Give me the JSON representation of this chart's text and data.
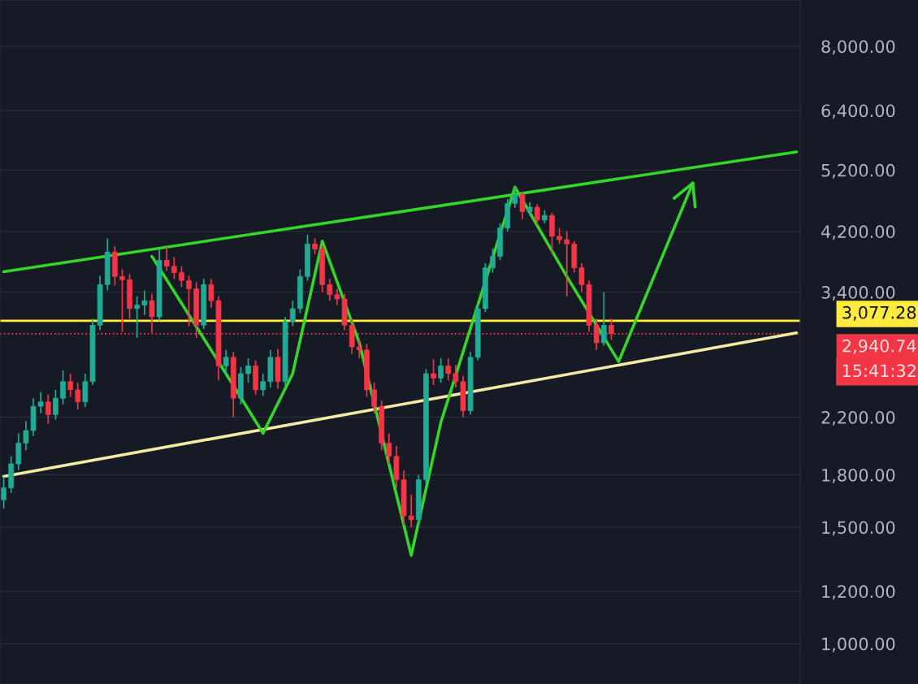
{
  "chart_data": {
    "type": "candlestick",
    "categories": [
      null,
      null,
      null,
      null,
      null,
      null,
      null,
      null,
      null,
      null,
      null,
      null,
      null,
      null,
      null,
      null,
      null,
      null,
      null,
      null,
      null,
      null,
      null,
      null,
      null,
      null,
      null,
      null,
      null,
      null,
      null,
      null,
      null,
      null,
      null,
      null,
      null,
      null,
      null,
      null,
      null,
      null,
      null,
      null,
      null,
      null,
      null,
      null,
      null,
      null,
      null,
      null,
      null,
      null,
      null,
      null,
      null,
      null,
      null,
      null,
      null,
      null,
      null,
      null,
      null,
      null,
      null,
      null,
      null,
      null,
      null,
      null,
      null,
      null,
      null,
      null,
      null,
      null,
      null,
      null,
      null,
      null,
      null,
      null,
      null,
      null,
      null,
      null,
      null,
      null,
      null,
      null,
      null,
      null,
      null,
      null,
      null,
      null,
      null,
      null,
      null,
      null,
      null,
      null,
      null,
      null,
      null,
      null
    ],
    "ohlc": [
      [
        1650,
        1790,
        1600,
        1720
      ],
      [
        1720,
        1920,
        1690,
        1870
      ],
      [
        1870,
        2080,
        1830,
        2010
      ],
      [
        2010,
        2170,
        1960,
        2100
      ],
      [
        2100,
        2350,
        2060,
        2285
      ],
      [
        2285,
        2400,
        2230,
        2320
      ],
      [
        2320,
        2380,
        2150,
        2220
      ],
      [
        2220,
        2420,
        2180,
        2350
      ],
      [
        2350,
        2590,
        2300,
        2490
      ],
      [
        2490,
        2560,
        2360,
        2420
      ],
      [
        2420,
        2480,
        2260,
        2320
      ],
      [
        2320,
        2560,
        2280,
        2490
      ],
      [
        2490,
        3100,
        2460,
        3030
      ],
      [
        3030,
        3600,
        2980,
        3490
      ],
      [
        3490,
        4100,
        3420,
        3910
      ],
      [
        3910,
        3990,
        3480,
        3590
      ],
      [
        3590,
        3680,
        2960,
        3550
      ],
      [
        3550,
        3620,
        3100,
        3210
      ],
      [
        3210,
        3350,
        2900,
        3250
      ],
      [
        3250,
        3420,
        3140,
        3300
      ],
      [
        3300,
        3380,
        2950,
        3120
      ],
      [
        3120,
        3950,
        3080,
        3800
      ],
      [
        3800,
        3980,
        3660,
        3720
      ],
      [
        3720,
        3840,
        3560,
        3640
      ],
      [
        3640,
        3720,
        3460,
        3540
      ],
      [
        3540,
        3600,
        3020,
        3440
      ],
      [
        3440,
        3520,
        2900,
        3030
      ],
      [
        3030,
        3560,
        2990,
        3490
      ],
      [
        3490,
        3560,
        3220,
        3300
      ],
      [
        3300,
        3350,
        2500,
        2630
      ],
      [
        2630,
        2780,
        2560,
        2710
      ],
      [
        2710,
        2760,
        2200,
        2350
      ],
      [
        2350,
        2620,
        2300,
        2560
      ],
      [
        2560,
        2700,
        2480,
        2630
      ],
      [
        2630,
        2680,
        2380,
        2420
      ],
      [
        2420,
        2560,
        2370,
        2490
      ],
      [
        2490,
        2780,
        2440,
        2710
      ],
      [
        2710,
        2790,
        2430,
        2490
      ],
      [
        2490,
        3120,
        2440,
        3070
      ],
      [
        3070,
        3300,
        3020,
        3210
      ],
      [
        3210,
        3680,
        3160,
        3590
      ],
      [
        3590,
        4150,
        3540,
        4020
      ],
      [
        4020,
        4100,
        3880,
        3950
      ],
      [
        3950,
        4000,
        3400,
        3490
      ],
      [
        3490,
        3560,
        3300,
        3370
      ],
      [
        3370,
        3440,
        3250,
        3320
      ],
      [
        3320,
        3380,
        2980,
        3030
      ],
      [
        3030,
        3100,
        2740,
        2810
      ],
      [
        2810,
        2880,
        2700,
        2780
      ],
      [
        2780,
        2840,
        2360,
        2420
      ],
      [
        2420,
        2480,
        2230,
        2285
      ],
      [
        2285,
        2330,
        1960,
        2010
      ],
      [
        2010,
        2080,
        1870,
        1920
      ],
      [
        1920,
        1990,
        1720,
        1770
      ],
      [
        1770,
        1830,
        1510,
        1560
      ],
      [
        1560,
        1680,
        1500,
        1540
      ],
      [
        1540,
        1800,
        1500,
        1770
      ],
      [
        1770,
        2600,
        1740,
        2560
      ],
      [
        2560,
        2690,
        2460,
        2520
      ],
      [
        2520,
        2700,
        2480,
        2630
      ],
      [
        2630,
        2700,
        2500,
        2560
      ],
      [
        2560,
        2640,
        2440,
        2490
      ],
      [
        2490,
        2540,
        2200,
        2250
      ],
      [
        2250,
        2760,
        2220,
        2710
      ],
      [
        2710,
        3260,
        2680,
        3210
      ],
      [
        3210,
        3760,
        3170,
        3700
      ],
      [
        3700,
        3960,
        3640,
        3850
      ],
      [
        3850,
        4320,
        3800,
        4250
      ],
      [
        4250,
        4700,
        4200,
        4630
      ],
      [
        4630,
        4900,
        4560,
        4770
      ],
      [
        4770,
        4820,
        4380,
        4500
      ],
      [
        4500,
        4650,
        4440,
        4570
      ],
      [
        4570,
        4620,
        4300,
        4370
      ],
      [
        4370,
        4520,
        4320,
        4440
      ],
      [
        4440,
        4480,
        3880,
        4130
      ],
      [
        4130,
        4250,
        4020,
        4080
      ],
      [
        4080,
        4200,
        3350,
        4020
      ],
      [
        4020,
        4060,
        3640,
        3700
      ],
      [
        3700,
        3760,
        3400,
        3490
      ],
      [
        3490,
        3540,
        2960,
        3030
      ],
      [
        3030,
        3100,
        2780,
        2850
      ],
      [
        2850,
        3400,
        2820,
        3030
      ],
      [
        3030,
        3100,
        2880,
        2940.74
      ],
      null,
      null,
      null,
      null,
      null,
      null,
      null,
      null,
      null,
      null,
      null,
      null,
      null,
      null,
      null,
      null,
      null,
      null,
      null,
      null,
      null,
      null,
      null,
      null,
      null
    ],
    "colors": [
      "#22ab94",
      "#22ab94",
      "#22ab94",
      "#22ab94",
      "#22ab94",
      "#22ab94",
      "#f23645",
      "#22ab94",
      "#22ab94",
      "#f23645",
      "#f23645",
      "#22ab94",
      "#22ab94",
      "#22ab94",
      "#22ab94",
      "#f23645",
      "#f23645",
      "#f23645",
      "#22ab94",
      "#22ab94",
      "#f23645",
      "#22ab94",
      "#f23645",
      "#f23645",
      "#f23645",
      "#f23645",
      "#f23645",
      "#22ab94",
      "#f23645",
      "#f23645",
      "#22ab94",
      "#f23645",
      "#22ab94",
      "#22ab94",
      "#f23645",
      "#22ab94",
      "#22ab94",
      "#f23645",
      "#22ab94",
      "#22ab94",
      "#22ab94",
      "#22ab94",
      "#f23645",
      "#f23645",
      "#f23645",
      "#f23645",
      "#f23645",
      "#f23645",
      "#f23645",
      "#f23645",
      "#f23645",
      "#f23645",
      "#f23645",
      "#f23645",
      "#f23645",
      "#f23645",
      "#22ab94",
      "#22ab94",
      "#f23645",
      "#22ab94",
      "#f23645",
      "#f23645",
      "#f23645",
      "#22ab94",
      "#22ab94",
      "#22ab94",
      "#22ab94",
      "#22ab94",
      "#22ab94",
      "#22ab94",
      "#f23645",
      "#22ab94",
      "#f23645",
      "#22ab94",
      "#f23645",
      "#f23645",
      "#f23645",
      "#f23645",
      "#f23645",
      "#f23645",
      "#f23645",
      "#22ab94",
      "#f23645",
      null,
      null,
      null,
      null,
      null,
      null,
      null,
      null,
      null,
      null,
      null,
      null,
      null,
      null,
      null,
      null,
      null,
      null,
      null,
      null,
      null,
      null,
      null,
      null,
      null
    ],
    "series": [
      {
        "type": "line",
        "color": "#35d62a",
        "values": [
          3650,
          null,
          null,
          null,
          null,
          null,
          null,
          null,
          null,
          null,
          null,
          null,
          null,
          null,
          null,
          null,
          null,
          null,
          null,
          null,
          null,
          null,
          null,
          null,
          null,
          null,
          null,
          null,
          null,
          null,
          null,
          null,
          null,
          null,
          null,
          null,
          null,
          null,
          null,
          null,
          null,
          null,
          null,
          null,
          null,
          null,
          null,
          null,
          null,
          null,
          null,
          null,
          null,
          null,
          null,
          null,
          null,
          null,
          null,
          null,
          null,
          null,
          null,
          null,
          null,
          null,
          null,
          null,
          null,
          null,
          null,
          null,
          null,
          null,
          null,
          null,
          null,
          null,
          null,
          null,
          null,
          null,
          null,
          null,
          null,
          null,
          null,
          null,
          null,
          null,
          null,
          null,
          null,
          null,
          null,
          null,
          null,
          null,
          null,
          null,
          null,
          null,
          null,
          null,
          null,
          null,
          null,
          5540
        ]
      },
      {
        "type": "line",
        "color": "#f5e9a6",
        "values": [
          1790,
          null,
          null,
          null,
          null,
          null,
          null,
          null,
          null,
          null,
          null,
          null,
          null,
          null,
          null,
          null,
          null,
          null,
          null,
          null,
          null,
          null,
          null,
          null,
          null,
          null,
          null,
          null,
          null,
          null,
          null,
          null,
          null,
          null,
          null,
          null,
          null,
          null,
          null,
          null,
          null,
          null,
          null,
          null,
          null,
          null,
          null,
          null,
          null,
          null,
          null,
          null,
          null,
          null,
          null,
          null,
          null,
          null,
          null,
          null,
          null,
          null,
          null,
          null,
          null,
          null,
          null,
          null,
          null,
          null,
          null,
          null,
          null,
          null,
          null,
          null,
          null,
          null,
          null,
          null,
          null,
          null,
          null,
          null,
          null,
          null,
          null,
          null,
          null,
          null,
          null,
          null,
          null,
          null,
          null,
          null,
          null,
          null,
          null,
          null,
          null,
          null,
          null,
          null,
          null,
          null,
          null,
          2950
        ]
      },
      {
        "type": "line",
        "color": "#35d62a",
        "values": [
          null,
          null,
          null,
          null,
          null,
          null,
          null,
          null,
          null,
          null,
          null,
          null,
          null,
          null,
          null,
          null,
          null,
          null,
          null,
          null,
          3850,
          null,
          null,
          null,
          null,
          null,
          null,
          null,
          null,
          null,
          2560,
          null,
          null,
          null,
          null,
          2080,
          null,
          null,
          null,
          2560,
          null,
          null,
          null,
          4060,
          null,
          null,
          null,
          null,
          2850,
          null,
          null,
          null,
          null,
          null,
          null,
          1360,
          null,
          null,
          null,
          2160,
          null,
          null,
          null,
          null,
          null,
          null,
          null,
          null,
          null,
          4900,
          null,
          null,
          null,
          null,
          null,
          null,
          3590,
          null,
          null,
          null,
          null,
          null,
          null,
          2670,
          null,
          null,
          null,
          null,
          null,
          null,
          null,
          null,
          null,
          4970,
          null,
          null,
          null,
          null,
          null,
          null,
          null,
          null,
          null,
          null,
          null,
          null,
          null,
          null
        ]
      }
    ],
    "log": true,
    "ylim": [
      869,
      9400
    ],
    "yticks": [
      {
        "value": 1000,
        "label": "1,000.00"
      },
      {
        "value": 1200,
        "label": "1,200.00"
      },
      {
        "value": 1500,
        "label": "1,500.00"
      },
      {
        "value": 1800,
        "label": "1,800.00"
      },
      {
        "value": 2200,
        "label": "2,200.00"
      },
      {
        "value": 3400,
        "label": "3,400.00"
      },
      {
        "value": 4200,
        "label": "4,200.00"
      },
      {
        "value": 5200,
        "label": "5,200.00"
      },
      {
        "value": 6400,
        "label": "6,400.00"
      },
      {
        "value": 8000,
        "label": "8,000.00"
      }
    ],
    "ref_lines": [
      {
        "axis": "y",
        "value": 3077.28,
        "label": "3,077.28",
        "color": "#ffeb3b"
      },
      {
        "axis": "y",
        "value": 2940.74,
        "label": "2,940.74",
        "color": "#f23645",
        "line_style": "dotted"
      }
    ],
    "annotations": [
      "15:41:32"
    ],
    "grid": "y",
    "tick_labels": "y"
  }
}
